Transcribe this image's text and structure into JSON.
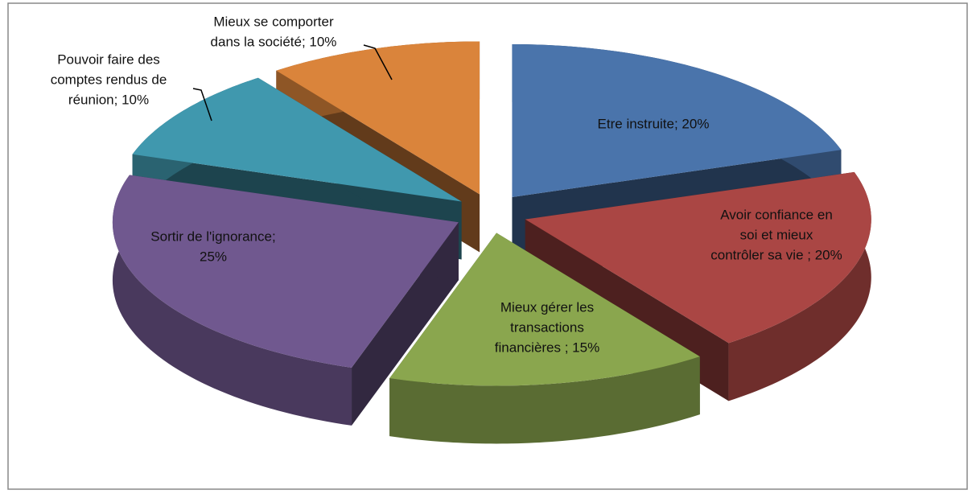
{
  "chart_data": {
    "type": "pie",
    "values": [
      20,
      20,
      15,
      25,
      10,
      10
    ],
    "value_labels": [
      [
        "Etre instruite; 20%"
      ],
      [
        "Avoir confiance en",
        "soi et mieux",
        "contrôler sa vie ; 20%"
      ],
      [
        "Mieux gérer les",
        "transactions",
        "financières ; 15%"
      ],
      [
        "Sortir de l'ignorance;",
        "25%"
      ],
      [
        "Pouvoir faire des",
        "comptes rendus de",
        "réunion; 10%"
      ],
      [
        "Mieux se comporter",
        "dans la société; 10%"
      ]
    ],
    "colors": [
      "#4a74ab",
      "#aa4644",
      "#8aa64e",
      "#70588f",
      "#4098ae",
      "#da843b"
    ],
    "three_d": true,
    "exploded": true
  }
}
